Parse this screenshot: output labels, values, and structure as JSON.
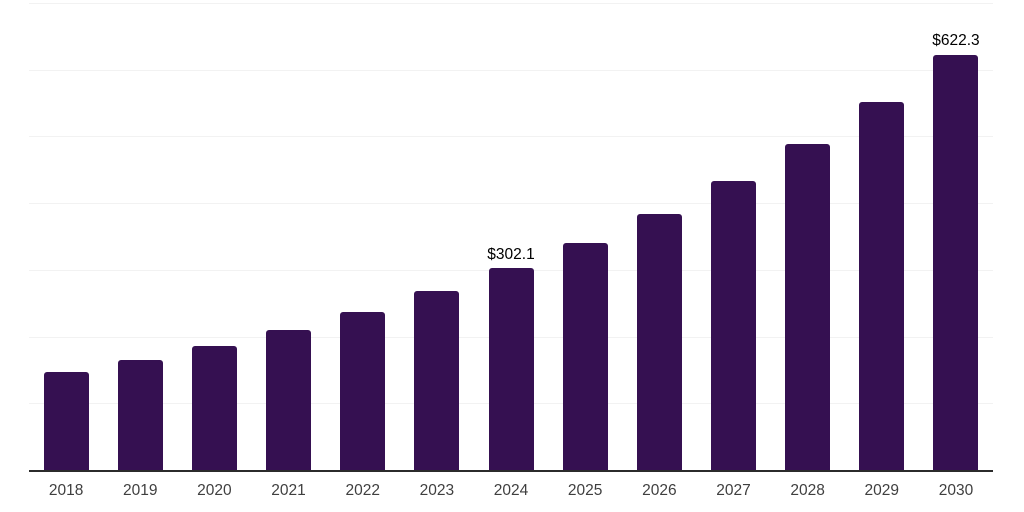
{
  "chart_data": {
    "type": "bar",
    "title": "",
    "xlabel": "",
    "ylabel": "",
    "categories": [
      "2018",
      "2019",
      "2020",
      "2021",
      "2022",
      "2023",
      "2024",
      "2025",
      "2026",
      "2027",
      "2028",
      "2029",
      "2030"
    ],
    "values": [
      146.7,
      165.4,
      186.6,
      210.5,
      237.4,
      267.8,
      302.1,
      340.8,
      384.4,
      433.6,
      489.1,
      551.7,
      622.3
    ],
    "data_labels": [
      "",
      "",
      "",
      "",
      "",
      "",
      "$302.1",
      "",
      "",
      "",
      "",
      "",
      "$622.3"
    ],
    "ylim": [
      0,
      700
    ],
    "gridline_step": 100,
    "grid": true,
    "legend": false,
    "bar_color": "#351051",
    "gridline_color": "#f2f2f2",
    "axis_color": "#2b2b2b",
    "tick_label_color": "#3f3f3f",
    "data_label_color": "#000000",
    "background_color": "#ffffff"
  }
}
